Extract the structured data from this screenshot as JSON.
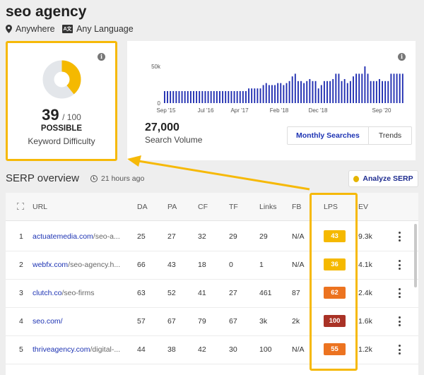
{
  "header": {
    "keyword": "seo agency",
    "location": "Anywhere",
    "language": "Any Language"
  },
  "keyword_difficulty": {
    "score": "39",
    "max_label": "/ 100",
    "level": "POSSIBLE",
    "label": "Keyword Difficulty",
    "value": 39
  },
  "search_volume": {
    "value": "27,000",
    "label": "Search Volume",
    "tabs": [
      "Monthly Searches",
      "Trends"
    ],
    "active_tab": "Monthly Searches"
  },
  "chart_data": {
    "type": "bar",
    "y_ticks": [
      "50k",
      "0"
    ],
    "ylim": [
      0,
      55000
    ],
    "x_ticks": [
      "Sep '15",
      "Jul '16",
      "Apr '17",
      "Feb '18",
      "Dec '18",
      "Sep '20"
    ],
    "bar_color": "#1d2bb0",
    "values": [
      18000,
      18000,
      18000,
      18000,
      18000,
      18000,
      18000,
      18000,
      18000,
      18000,
      18000,
      18000,
      18000,
      18000,
      18000,
      18000,
      18000,
      18000,
      18000,
      18000,
      18000,
      18000,
      18000,
      18000,
      18000,
      18000,
      18000,
      18000,
      18000,
      22000,
      22000,
      22000,
      22000,
      22000,
      27000,
      30000,
      27000,
      27000,
      27000,
      30000,
      30000,
      27000,
      30000,
      33000,
      40000,
      44000,
      33000,
      33000,
      30000,
      33000,
      36000,
      33000,
      33000,
      22000,
      27000,
      33000,
      33000,
      33000,
      36000,
      44000,
      44000,
      33000,
      36000,
      30000,
      33000,
      40000,
      44000,
      44000,
      44000,
      55000,
      44000,
      33000,
      33000,
      33000,
      36000,
      33000,
      33000,
      33000,
      44000,
      44000,
      44000,
      44000,
      44000
    ]
  },
  "serp": {
    "title": "SERP overview",
    "updated": "21 hours ago",
    "analyze_label": "Analyze SERP",
    "columns": [
      "URL",
      "DA",
      "PA",
      "CF",
      "TF",
      "Links",
      "FB",
      "LPS",
      "EV"
    ],
    "rows": [
      {
        "rank": "1",
        "domain": "actuatemedia.com",
        "path": "/seo-a...",
        "da": "25",
        "pa": "27",
        "cf": "32",
        "tf": "29",
        "links": "29",
        "fb": "N/A",
        "lps": "43",
        "lps_color": "#f5b900",
        "ev": "9.3k"
      },
      {
        "rank": "2",
        "domain": "webfx.com",
        "path": "/seo-agency.h...",
        "da": "66",
        "pa": "43",
        "cf": "18",
        "tf": "0",
        "links": "1",
        "fb": "N/A",
        "lps": "36",
        "lps_color": "#f5b900",
        "ev": "4.1k"
      },
      {
        "rank": "3",
        "domain": "clutch.co",
        "path": "/seo-firms",
        "da": "63",
        "pa": "52",
        "cf": "41",
        "tf": "27",
        "links": "461",
        "fb": "87",
        "lps": "62",
        "lps_color": "#ec7320",
        "ev": "2.4k"
      },
      {
        "rank": "4",
        "domain": "seo.com/",
        "path": "",
        "da": "57",
        "pa": "67",
        "cf": "79",
        "tf": "67",
        "links": "3k",
        "fb": "2k",
        "lps": "100",
        "lps_color": "#a93226",
        "ev": "1.6k"
      },
      {
        "rank": "5",
        "domain": "thriveagency.com",
        "path": "/digital-...",
        "da": "44",
        "pa": "38",
        "cf": "42",
        "tf": "30",
        "links": "100",
        "fb": "N/A",
        "lps": "55",
        "lps_color": "#ec7320",
        "ev": "1.2k"
      }
    ]
  },
  "colors": {
    "highlight": "#f6b908",
    "link": "#1d33b3",
    "gauge": "#f5b900"
  },
  "icons": [
    "location-pin-icon",
    "language-icon",
    "info-icon",
    "clock-icon",
    "coin-icon",
    "expand-icon",
    "kebab-menu-icon"
  ]
}
